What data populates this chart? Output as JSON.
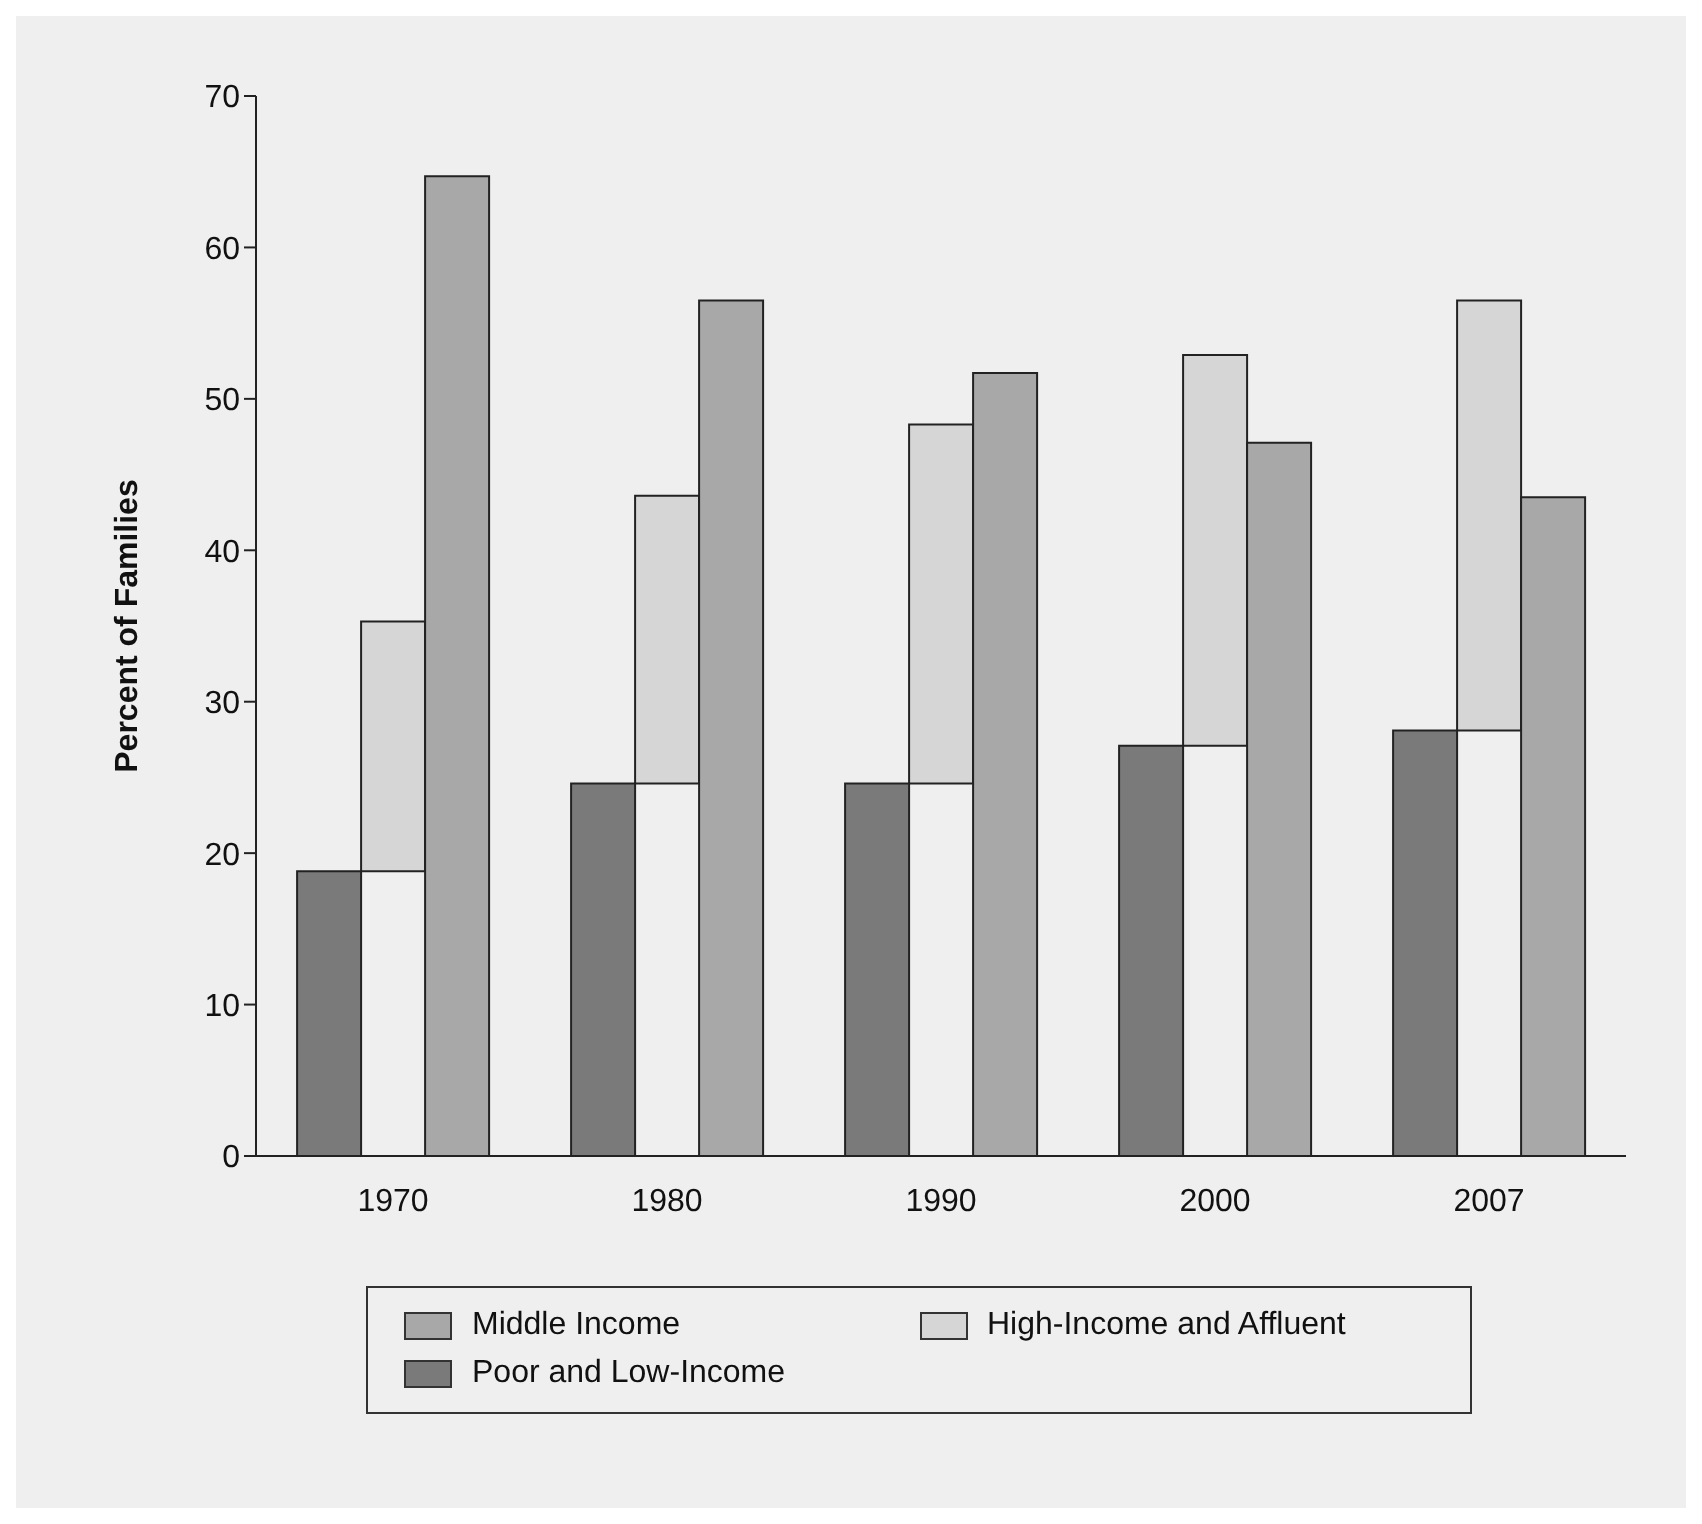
{
  "chart_data": {
    "type": "bar",
    "ylabel": "Percent of Families",
    "categories": [
      "1970",
      "1980",
      "1990",
      "2000",
      "2007"
    ],
    "series": [
      {
        "name": "Poor and Low-Income",
        "color": "#7a7a7a",
        "values": [
          18.8,
          24.6,
          24.6,
          27.1,
          28.1
        ]
      },
      {
        "name": "High-Income and Affluent",
        "color": "#d6d6d6",
        "base": [
          18.8,
          24.6,
          24.6,
          27.1,
          28.1
        ],
        "values": [
          16.5,
          19.0,
          23.7,
          25.8,
          28.4
        ]
      },
      {
        "name": "Middle Income",
        "color": "#a8a8a8",
        "values": [
          64.7,
          56.5,
          51.7,
          47.1,
          43.5
        ]
      }
    ],
    "ylim": [
      0,
      70
    ],
    "yticks": [
      0,
      10,
      20,
      30,
      40,
      50,
      60,
      70
    ],
    "grid": false,
    "legend": "bottom"
  }
}
